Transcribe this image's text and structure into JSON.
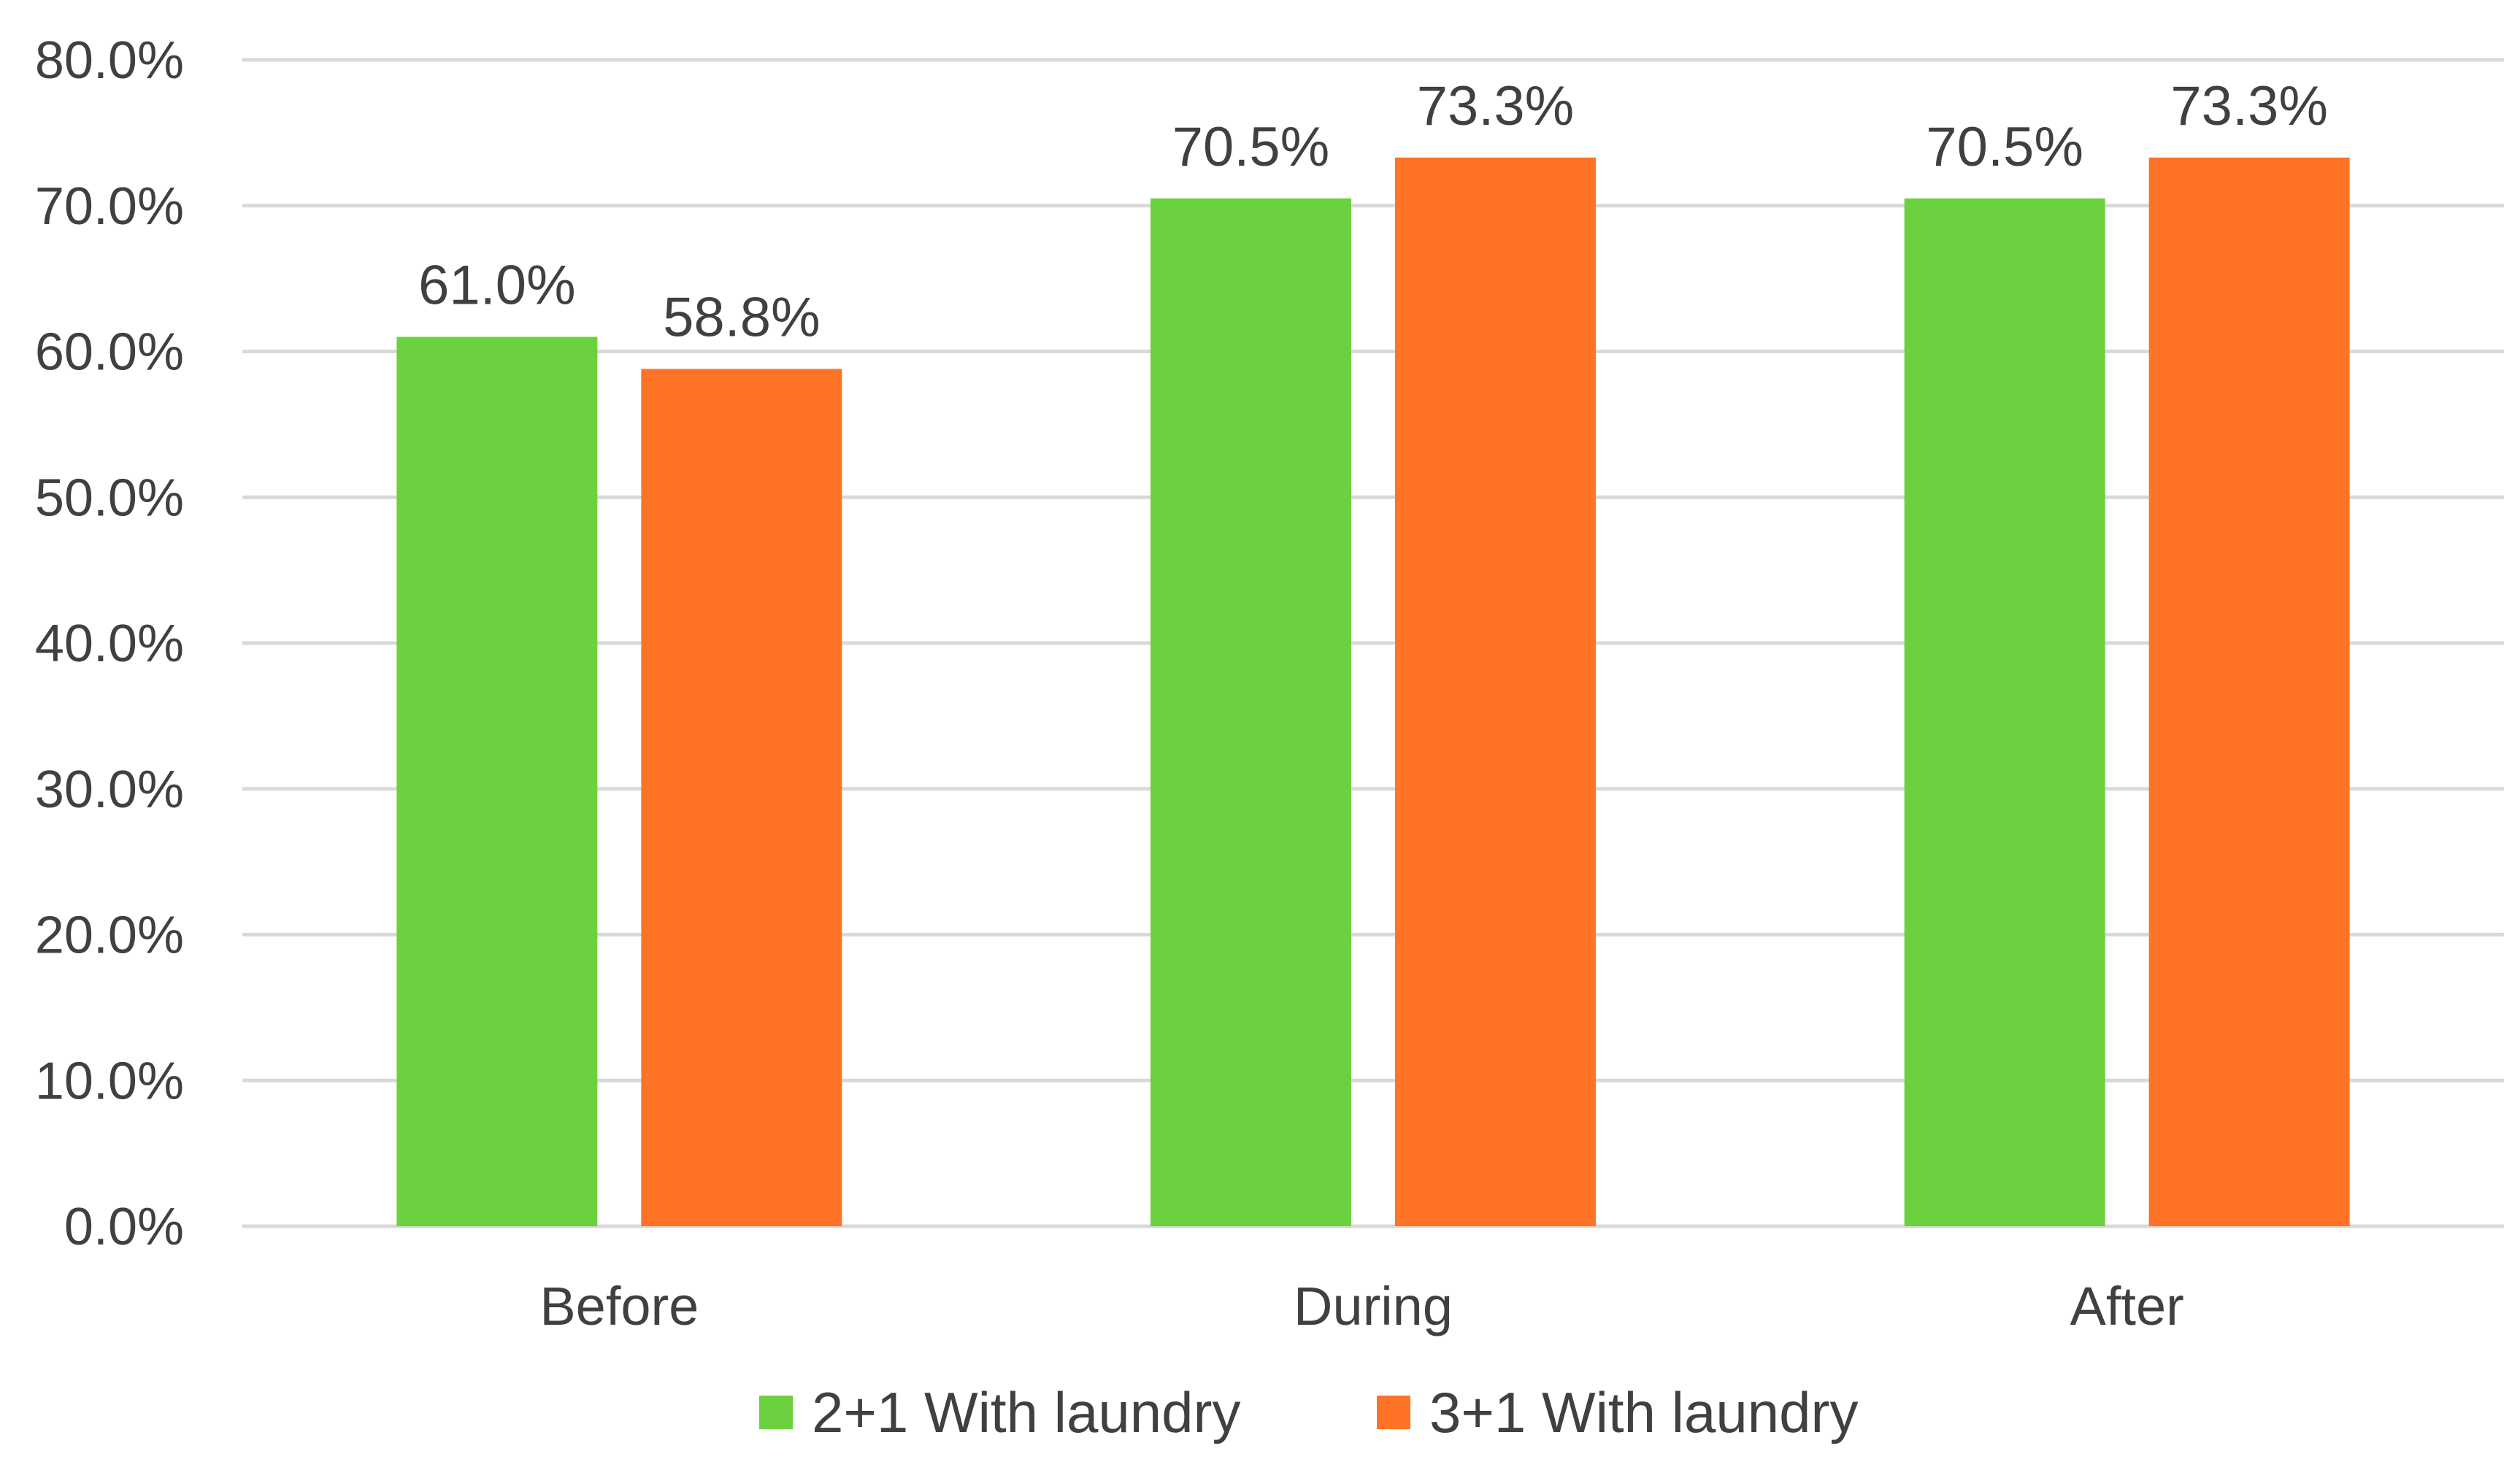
{
  "chart_data": {
    "type": "bar",
    "categories": [
      "Before",
      "During",
      "After"
    ],
    "series": [
      {
        "name": "2+1 With laundry",
        "color": "#6cd13e",
        "values": [
          61.0,
          70.5,
          70.5
        ],
        "labels": [
          "61.0%",
          "70.5%",
          "70.5%"
        ]
      },
      {
        "name": "3+1 With laundry",
        "color": "#ff7327",
        "values": [
          58.8,
          73.3,
          73.3
        ],
        "labels": [
          "58.8%",
          "73.3%",
          "73.3%"
        ]
      }
    ],
    "ylim": [
      0,
      80
    ],
    "yticks": [
      0,
      10,
      20,
      30,
      40,
      50,
      60,
      70,
      80
    ],
    "ytick_labels": [
      "0.0%",
      "10.0%",
      "20.0%",
      "30.0%",
      "40.0%",
      "50.0%",
      "60.0%",
      "70.0%",
      "80.0%"
    ],
    "grid": true,
    "legend_position": "bottom",
    "title": "",
    "xlabel": "",
    "ylabel": ""
  }
}
